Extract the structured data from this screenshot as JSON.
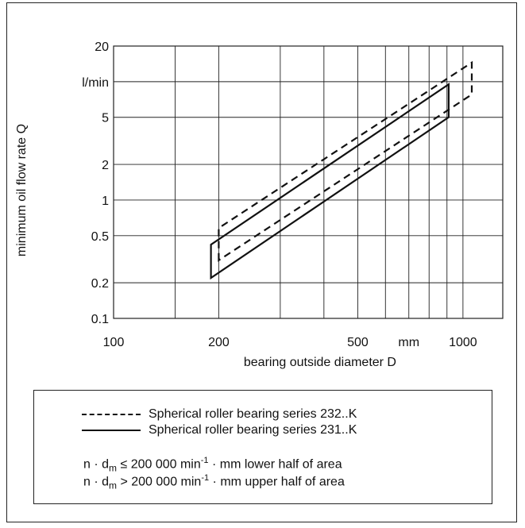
{
  "chart_data": {
    "type": "area",
    "xlabel": "bearing outside diameter D",
    "ylabel": "minimum oil flow rate Q",
    "x_scale": "log",
    "y_scale": "log",
    "xlim": [
      100,
      1300
    ],
    "ylim": [
      0.1,
      20
    ],
    "x_ticks": [
      100,
      150,
      200,
      300,
      400,
      500,
      600,
      700,
      800,
      900,
      1000
    ],
    "x_tick_labels": [
      {
        "value": 100,
        "label": "100"
      },
      {
        "value": 200,
        "label": "200"
      },
      {
        "value": 500,
        "label": "500"
      },
      {
        "value": 700,
        "label": "mm"
      },
      {
        "value": 1000,
        "label": "1000"
      }
    ],
    "y_ticks": [
      0.1,
      0.2,
      0.5,
      1,
      2,
      5,
      10,
      20
    ],
    "y_tick_labels": [
      {
        "value": 20,
        "label": "20"
      },
      {
        "value": 10,
        "label": "l/min"
      },
      {
        "value": 5,
        "label": "5"
      },
      {
        "value": 2,
        "label": "2"
      },
      {
        "value": 1,
        "label": "1"
      },
      {
        "value": 0.5,
        "label": "0.5"
      },
      {
        "value": 0.2,
        "label": "0.2"
      },
      {
        "value": 0.1,
        "label": "0.1"
      }
    ],
    "grid": true,
    "series": [
      {
        "name": "Spherical roller bearing series 232..K",
        "style": "dashed",
        "polygon": [
          [
            200,
            0.31
          ],
          [
            200,
            0.58
          ],
          [
            1060,
            14.5
          ],
          [
            1060,
            7.8
          ]
        ]
      },
      {
        "name": "Spherical roller bearing series 231..K",
        "style": "solid",
        "polygon": [
          [
            190,
            0.22
          ],
          [
            190,
            0.42
          ],
          [
            910,
            9.5
          ],
          [
            910,
            5.0
          ]
        ]
      }
    ]
  },
  "legend": {
    "dashed_label": "Spherical roller bearing series 232..K",
    "solid_label": "Spherical roller bearing series 231..K"
  },
  "notes": {
    "line1": {
      "prefix": "n · d",
      "sub": "m",
      "relation": " ≤ 200 000 min",
      "sup": "-1",
      "suffix": " · mm lower half of area"
    },
    "line2": {
      "prefix": "n · d",
      "sub": "m",
      "relation": " > 200 000 min",
      "sup": "-1",
      "suffix": " · mm upper half of area"
    }
  },
  "colors": {
    "line": "#111111",
    "grid": "#222222"
  }
}
